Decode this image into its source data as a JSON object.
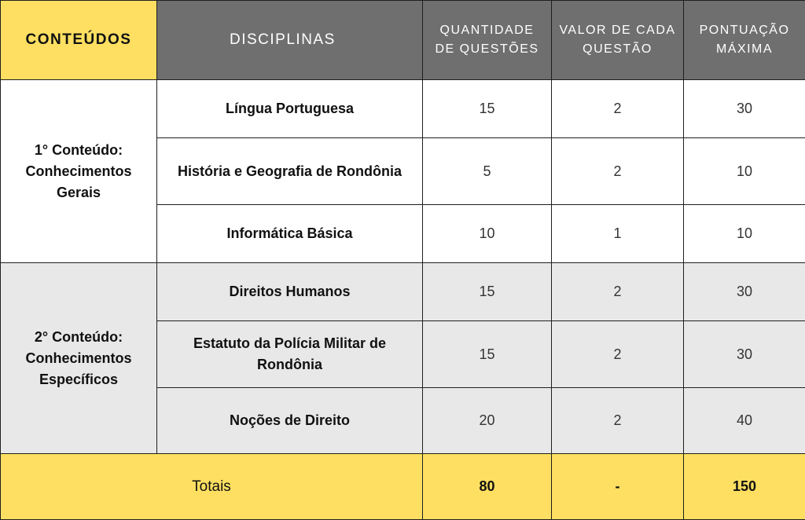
{
  "header": {
    "conteudos": "CONTEÚDOS",
    "disciplinas": "DISCIPLINAS",
    "quantidade": "QUANTIDADE DE QUESTÕES",
    "valor": "VALOR DE CADA QUESTÃO",
    "pontuacao": "PONTUAÇÃO MÁXIMA"
  },
  "groups": [
    {
      "label": "1° Conteúdo: Conhecimentos Gerais",
      "rows": [
        {
          "subject": "Língua Portuguesa",
          "qty": "15",
          "value": "2",
          "max": "30"
        },
        {
          "subject": "História e Geografia de Rondônia",
          "qty": "5",
          "value": "2",
          "max": "10"
        },
        {
          "subject": "Informática Básica",
          "qty": "10",
          "value": "1",
          "max": "10"
        }
      ]
    },
    {
      "label": "2° Conteúdo: Conhecimentos Específicos",
      "rows": [
        {
          "subject": "Direitos Humanos",
          "qty": "15",
          "value": "2",
          "max": "30"
        },
        {
          "subject": "Estatuto da Polícia Militar de Rondônia",
          "qty": "15",
          "value": "2",
          "max": "30"
        },
        {
          "subject": "Noções de Direito",
          "qty": "20",
          "value": "2",
          "max": "40"
        }
      ]
    }
  ],
  "totals": {
    "label": "Totais",
    "qty": "80",
    "value": "-",
    "max": "150"
  },
  "colors": {
    "header_gray": "#6f6f6f",
    "accent_yellow": "#fedf61",
    "row_gray": "#e8e8e8"
  }
}
